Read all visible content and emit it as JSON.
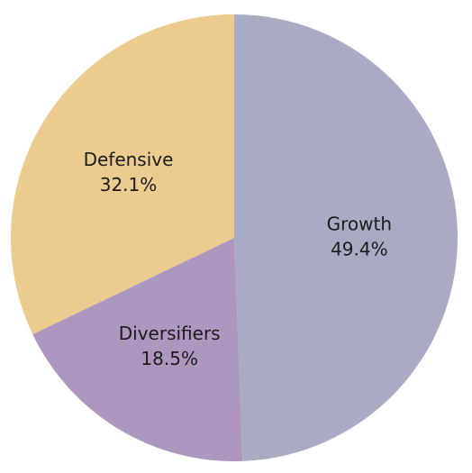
{
  "chart_data": {
    "type": "pie",
    "title": "",
    "slices": [
      {
        "label": "Growth",
        "value": 49.4,
        "value_text": "49.4%",
        "color": "#a9abc4"
      },
      {
        "label": "Diversifiers",
        "value": 18.5,
        "value_text": "18.5%",
        "color": "#ae97bf"
      },
      {
        "label": "Defensive",
        "value": 32.1,
        "value_text": "32.1%",
        "color": "#ebcb8e"
      }
    ],
    "start_angle": "12 o'clock",
    "direction": "clockwise",
    "legend": "none"
  }
}
